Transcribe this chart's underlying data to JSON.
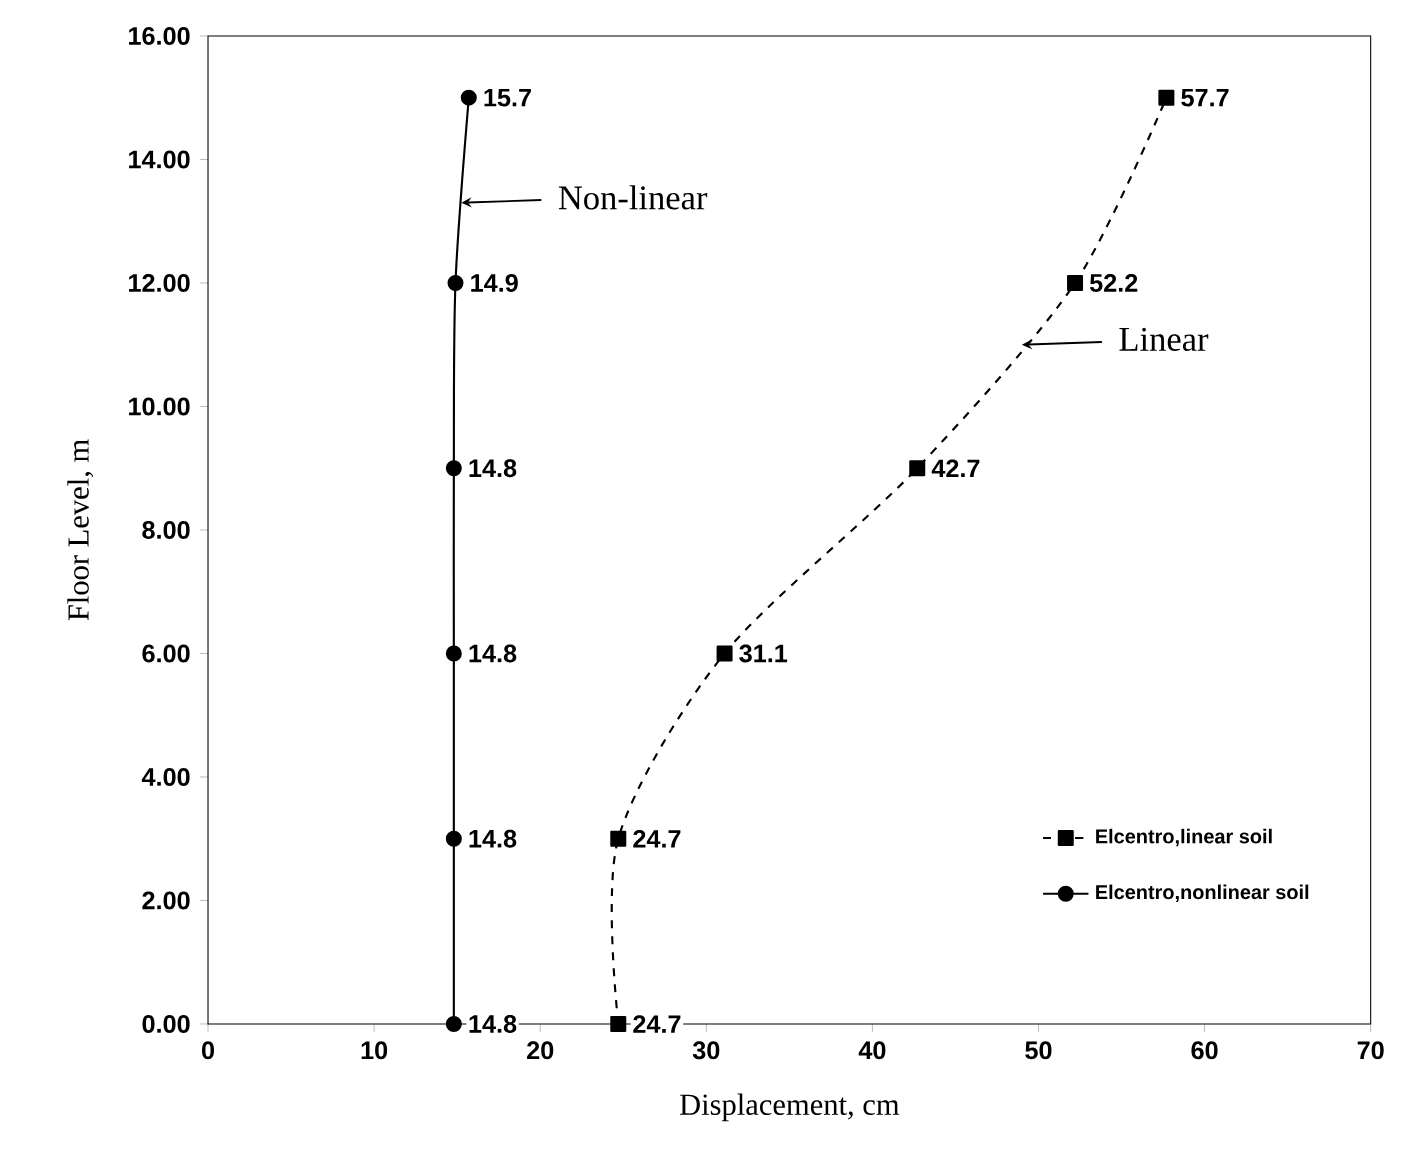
{
  "chart_data": {
    "type": "line",
    "xlabel": "Displacement, cm",
    "ylabel": "Floor Level, m",
    "xlim": [
      0,
      70
    ],
    "xticks": [
      0,
      10,
      20,
      30,
      40,
      50,
      60,
      70
    ],
    "ylim": [
      0,
      16
    ],
    "yticks": [
      {
        "value": 0,
        "label": "0.00"
      },
      {
        "value": 2,
        "label": "2.00"
      },
      {
        "value": 4,
        "label": "4.00"
      },
      {
        "value": 6,
        "label": "6.00"
      },
      {
        "value": 8,
        "label": "8.00"
      },
      {
        "value": 10,
        "label": "10.00"
      },
      {
        "value": 12,
        "label": "12.00"
      },
      {
        "value": 14,
        "label": "14.00"
      },
      {
        "value": 16,
        "label": "16.00"
      }
    ],
    "series": [
      {
        "name": "Elcentro,linear soil",
        "color": "#000000",
        "marker": "square",
        "line_style": "dashed",
        "x": [
          0,
          3,
          6,
          9,
          12,
          15
        ],
        "values": [
          24.7,
          24.7,
          31.1,
          42.7,
          52.2,
          57.7
        ],
        "value_labels": [
          "24.7",
          "24.7",
          "31.1",
          "42.7",
          "52.2",
          "57.7"
        ]
      },
      {
        "name": "Elcentro,nonlinear soil",
        "color": "#000000",
        "marker": "circle",
        "line_style": "solid",
        "x": [
          0,
          3,
          6,
          9,
          12,
          15
        ],
        "values": [
          14.8,
          14.8,
          14.8,
          14.8,
          14.9,
          15.7
        ],
        "value_labels": [
          "14.8",
          "14.8",
          "14.8",
          "14.8",
          "14.9",
          "15.7"
        ]
      }
    ],
    "annotations": [
      {
        "text": "Non-linear",
        "x": 15.25,
        "y": 13.3
      },
      {
        "text": "Linear",
        "x": 49.0,
        "y": 11.0
      }
    ],
    "orientation": "horizontal",
    "legend": "bottom right",
    "grid": false
  }
}
